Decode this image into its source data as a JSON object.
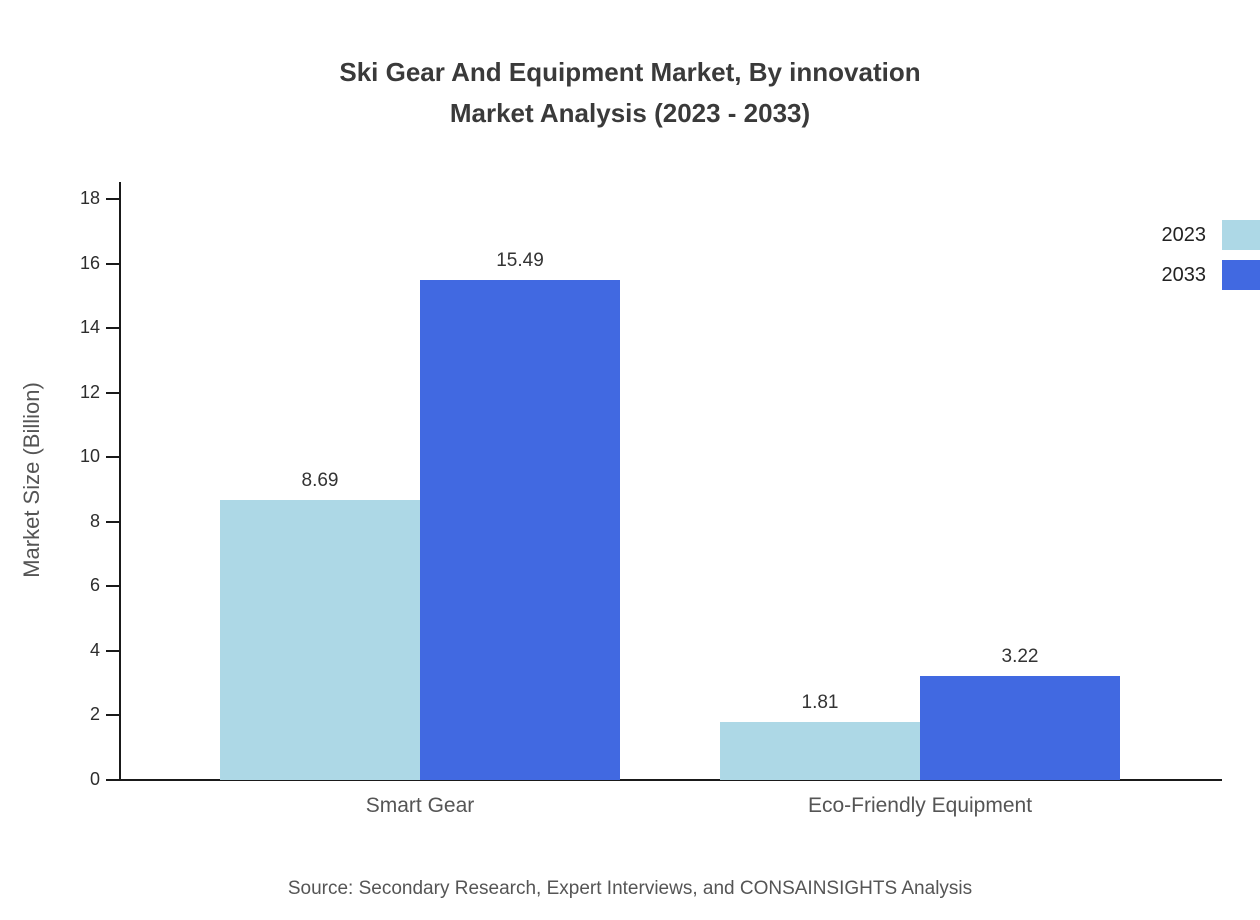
{
  "chart_data": {
    "type": "bar",
    "title": "Ski Gear And Equipment Market, By innovation Market Analysis (2023 - 2033)",
    "title_lines": [
      "Ski Gear And Equipment Market, By innovation",
      "Market Analysis (2023 - 2033)"
    ],
    "ylabel": "Market Size (Billion)",
    "xlabel": "",
    "categories": [
      "Smart Gear",
      "Eco-Friendly Equipment"
    ],
    "series": [
      {
        "name": "2023",
        "color": "#add8e6",
        "values": [
          8.69,
          1.81
        ]
      },
      {
        "name": "2033",
        "color": "#4169e1",
        "values": [
          15.49,
          3.22
        ]
      }
    ],
    "ylim": [
      0,
      18
    ],
    "yticks": [
      0,
      2,
      4,
      6,
      8,
      10,
      12,
      14,
      16,
      18
    ],
    "grid": false,
    "legend_position": "top-right",
    "value_labels": true,
    "source": "Source: Secondary Research, Expert Interviews, and CONSAINSIGHTS Analysis"
  }
}
